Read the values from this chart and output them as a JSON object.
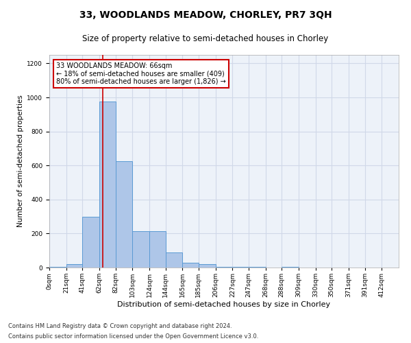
{
  "title": "33, WOODLANDS MEADOW, CHORLEY, PR7 3QH",
  "subtitle": "Size of property relative to semi-detached houses in Chorley",
  "xlabel": "Distribution of semi-detached houses by size in Chorley",
  "ylabel": "Number of semi-detached properties",
  "footnote1": "Contains HM Land Registry data © Crown copyright and database right 2024.",
  "footnote2": "Contains public sector information licensed under the Open Government Licence v3.0.",
  "annotation_line1": "33 WOODLANDS MEADOW: 66sqm",
  "annotation_line2": "← 18% of semi-detached houses are smaller (409)",
  "annotation_line3": "80% of semi-detached houses are larger (1,826) →",
  "bar_left_edges": [
    0,
    21,
    41,
    62,
    82,
    103,
    124,
    144,
    165,
    185,
    206,
    227,
    247,
    268,
    288,
    309,
    330,
    350,
    371,
    391
  ],
  "bar_widths": [
    21,
    20,
    21,
    20,
    21,
    21,
    20,
    21,
    20,
    21,
    21,
    20,
    21,
    20,
    21,
    21,
    20,
    21,
    20,
    21
  ],
  "bar_heights": [
    5,
    20,
    300,
    975,
    625,
    215,
    215,
    90,
    30,
    20,
    5,
    5,
    5,
    0,
    5,
    0,
    0,
    0,
    0,
    0
  ],
  "bar_color": "#aec6e8",
  "bar_edge_color": "#5a9ad4",
  "marker_x": 66,
  "marker_color": "#cc0000",
  "ylim": [
    0,
    1250
  ],
  "yticks": [
    0,
    200,
    400,
    600,
    800,
    1000,
    1200
  ],
  "xtick_labels": [
    "0sqm",
    "21sqm",
    "41sqm",
    "62sqm",
    "82sqm",
    "103sqm",
    "124sqm",
    "144sqm",
    "165sqm",
    "185sqm",
    "206sqm",
    "227sqm",
    "247sqm",
    "268sqm",
    "288sqm",
    "309sqm",
    "330sqm",
    "350sqm",
    "371sqm",
    "391sqm",
    "412sqm"
  ],
  "xtick_positions": [
    0,
    21,
    41,
    62,
    82,
    103,
    124,
    144,
    165,
    185,
    206,
    227,
    247,
    268,
    288,
    309,
    330,
    350,
    371,
    391,
    412
  ],
  "grid_color": "#d0d8e8",
  "bg_color": "#edf2f9",
  "title_fontsize": 10,
  "subtitle_fontsize": 8.5,
  "ylabel_fontsize": 7.5,
  "xlabel_fontsize": 8,
  "tick_fontsize": 6.5,
  "footnote_fontsize": 6,
  "annotation_fontsize": 7
}
